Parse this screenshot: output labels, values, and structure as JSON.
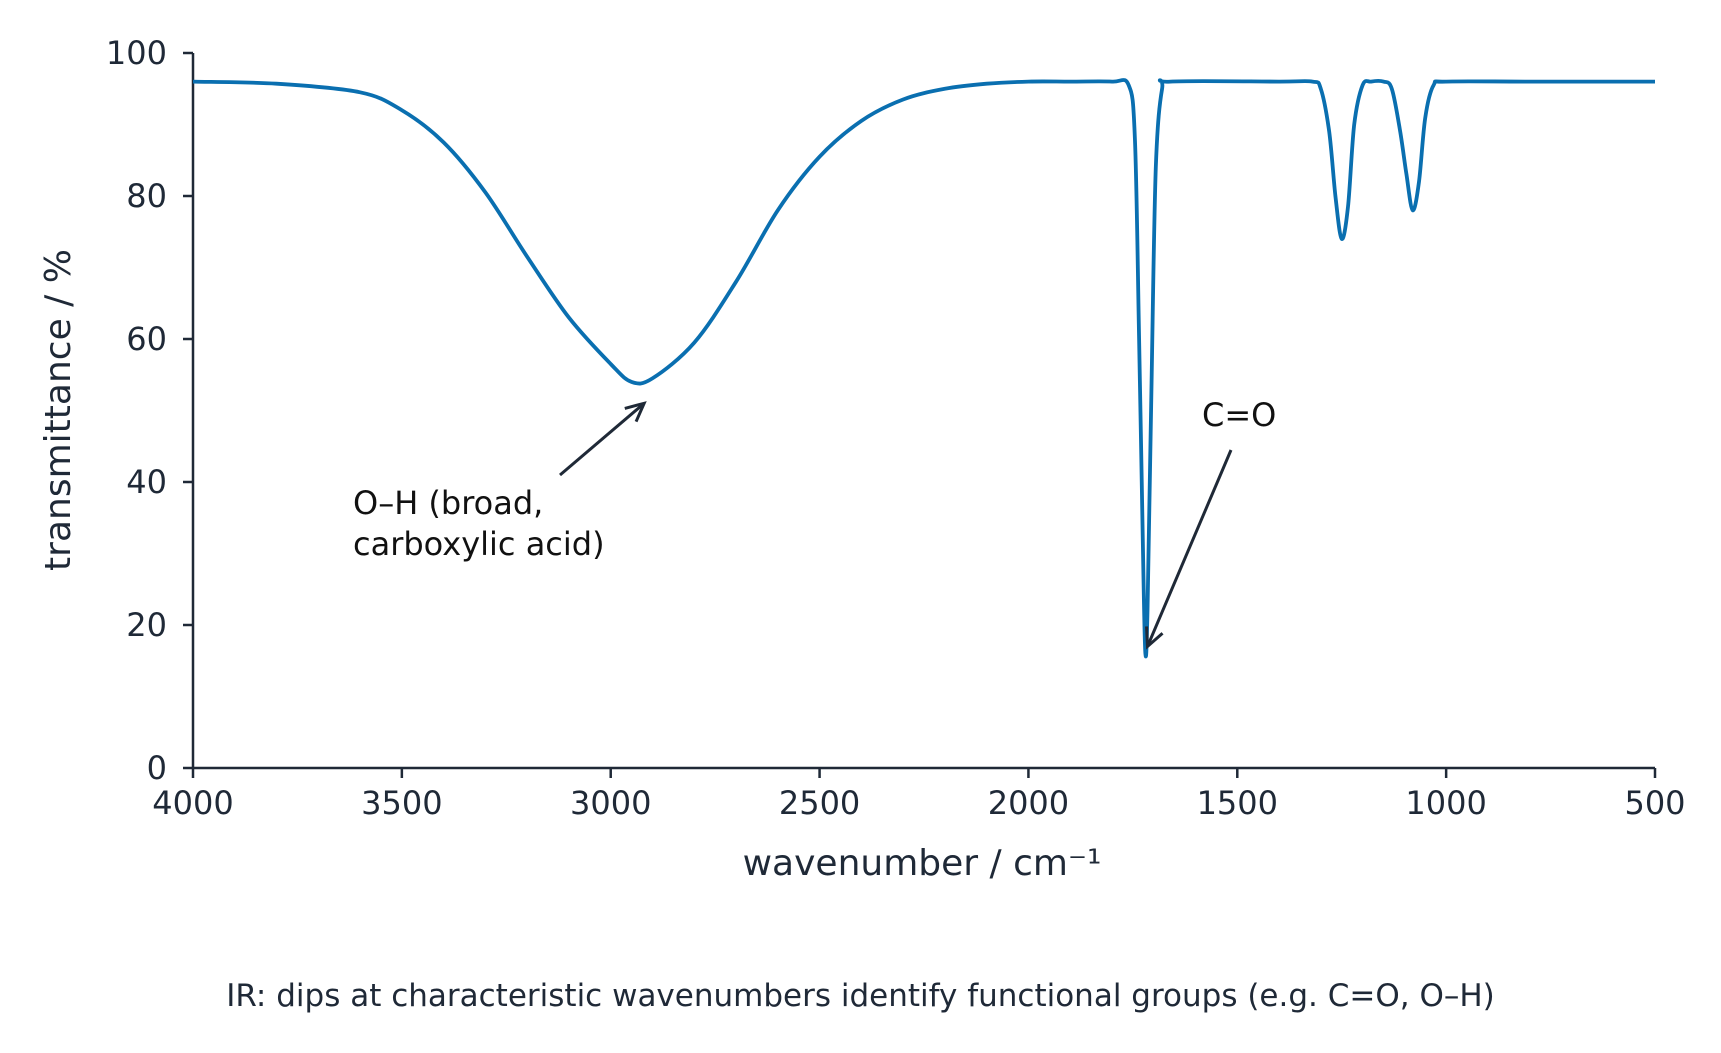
{
  "chart_data": {
    "type": "line",
    "xlabel": "wavenumber / cm⁻¹",
    "ylabel": "transmittance / %",
    "xlim": [
      4000,
      500
    ],
    "ylim": [
      0,
      100
    ],
    "x_reversed": true,
    "xticks": [
      4000,
      3500,
      3000,
      2500,
      2000,
      1500,
      1000,
      500
    ],
    "yticks": [
      0,
      20,
      40,
      60,
      80,
      100
    ],
    "grid": false,
    "baseline": 96,
    "series": [
      {
        "color": "#0a6fb0",
        "x": [
          4000,
          3800,
          3600,
          3500,
          3400,
          3300,
          3200,
          3100,
          3000,
          2950,
          2900,
          2800,
          2700,
          2600,
          2500,
          2400,
          2300,
          2200,
          2100,
          2000,
          1900,
          1800,
          1760,
          1745,
          1735,
          1725,
          1720,
          1715,
          1705,
          1695,
          1680,
          1660,
          1400,
          1320,
          1300,
          1280,
          1265,
          1250,
          1235,
          1220,
          1200,
          1180,
          1150,
          1130,
          1110,
          1095,
          1080,
          1065,
          1050,
          1030,
          1000,
          800,
          500
        ],
        "y": [
          96,
          95.7,
          94.5,
          92,
          87.5,
          80.5,
          71.5,
          63,
          56.5,
          54,
          54.5,
          59.5,
          68,
          78,
          85.5,
          90.5,
          93.5,
          95,
          95.7,
          96,
          96,
          96,
          95.5,
          88,
          60,
          28,
          16,
          22,
          55,
          84,
          95,
          96,
          96,
          96,
          95,
          89,
          80,
          74,
          78.5,
          90,
          95.5,
          96,
          96,
          95,
          89,
          83,
          78,
          82,
          91,
          95.5,
          96,
          96,
          96
        ]
      }
    ],
    "annotations": [
      {
        "text_lines": [
          "O–H (broad,",
          "carboxylic acid)"
        ],
        "target": [
          2920,
          51
        ]
      },
      {
        "text_lines": [
          "C=O"
        ],
        "target": [
          1715,
          17
        ]
      }
    ]
  },
  "caption": "IR: dips at characteristic wavenumbers identify functional groups (e.g. C=O, O–H)",
  "colors": {
    "line": "#0a6fb0",
    "axis": "#1f2937",
    "text": "#1f2937"
  }
}
